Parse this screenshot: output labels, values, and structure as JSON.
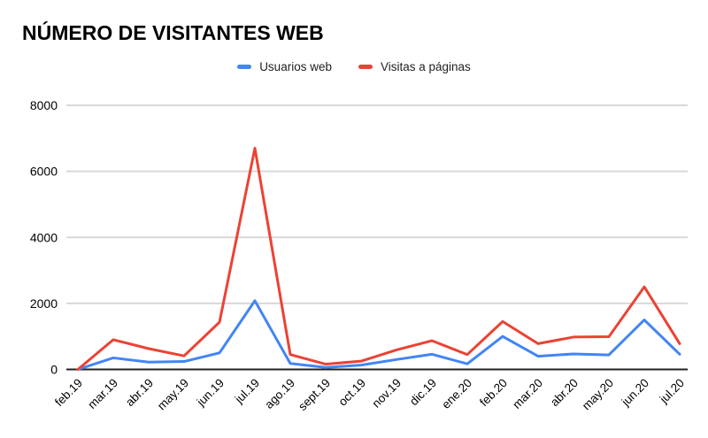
{
  "title": "NÚMERO DE VISITANTES WEB",
  "colors": {
    "background": "#ffffff",
    "series_blue": "#4285f4",
    "series_red": "#ea4335",
    "gridline": "#d9d9d9",
    "axis_line": "#212121",
    "title_text": "#000000",
    "tick_text": "#000000",
    "legend_text": "#1f1f1f"
  },
  "legend": {
    "items": [
      {
        "label": "Usuarios web",
        "color": "#4285f4"
      },
      {
        "label": "Visitas a páginas",
        "color": "#ea4335"
      }
    ],
    "position": "top-center"
  },
  "chart_data": {
    "type": "line",
    "title": "NÚMERO DE VISITANTES WEB",
    "categories": [
      "feb.19",
      "mar.19",
      "abr.19",
      "may.19",
      "jun.19",
      "jul.19",
      "ago.19",
      "sept.19",
      "oct.19",
      "nov.19",
      "dic.19",
      "ene.20",
      "feb.20",
      "mar.20",
      "abr.20",
      "may.20",
      "jun.20",
      "jul.20"
    ],
    "series": [
      {
        "name": "Usuarios web",
        "color": "#4285f4",
        "values": [
          0,
          350,
          220,
          240,
          500,
          2080,
          180,
          60,
          130,
          300,
          460,
          170,
          1000,
          400,
          470,
          440,
          1500,
          460
        ]
      },
      {
        "name": "Visitas a páginas",
        "color": "#ea4335",
        "values": [
          0,
          900,
          630,
          410,
          1430,
          6700,
          450,
          160,
          250,
          590,
          870,
          450,
          1450,
          780,
          980,
          990,
          2500,
          780
        ]
      }
    ],
    "xlabel": "",
    "ylabel": "",
    "ylim": [
      0,
      8000
    ],
    "yticks": [
      0,
      2000,
      4000,
      6000,
      8000
    ],
    "grid": true,
    "legend_position": "top-center",
    "x_label_rotation": -45
  }
}
